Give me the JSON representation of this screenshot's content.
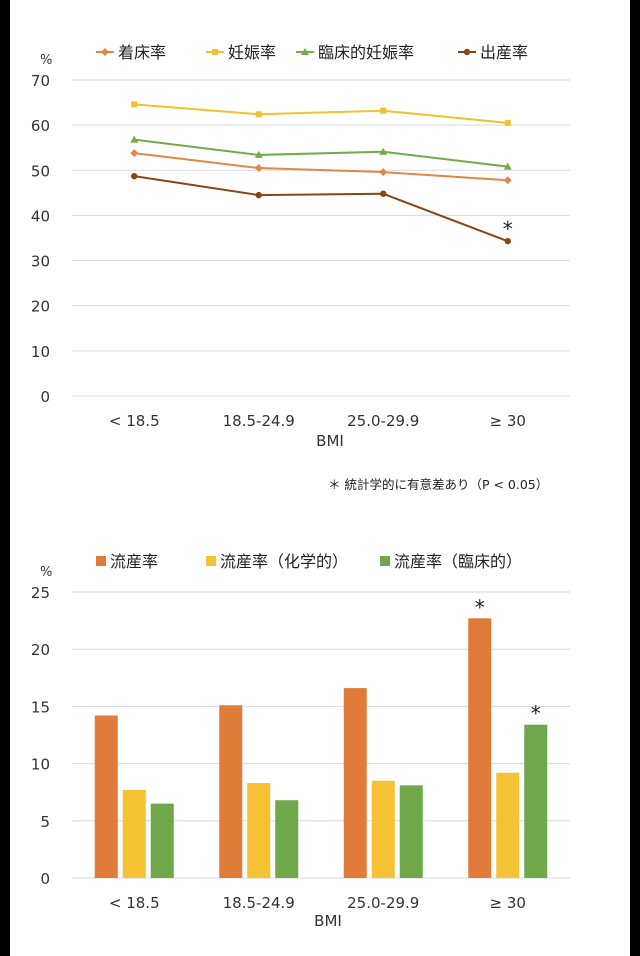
{
  "chart_data": [
    {
      "type": "line",
      "ylabel": "%",
      "xlabel": "BMI",
      "categories": [
        "< 18.5",
        "18.5-24.9",
        "25.0-29.9",
        "≥ 30"
      ],
      "ylim": [
        0,
        70
      ],
      "yticks": [
        "0",
        "10",
        "20",
        "30",
        "40",
        "50",
        "60",
        "70"
      ],
      "grid": true,
      "legend_position": "top",
      "series": [
        {
          "name": "着床率",
          "color": "#E0884A",
          "marker": "diamond",
          "values": [
            53.8,
            50.5,
            49.6,
            47.8
          ]
        },
        {
          "name": "妊娠率",
          "color": "#F2C12E",
          "marker": "square",
          "values": [
            64.6,
            62.4,
            63.2,
            60.5
          ]
        },
        {
          "name": "臨床的妊娠率",
          "color": "#70AD47",
          "marker": "triangle",
          "values": [
            56.8,
            53.4,
            54.1,
            50.8
          ]
        },
        {
          "name": "出産率",
          "color": "#8B4513",
          "marker": "circle",
          "values": [
            48.7,
            44.5,
            44.8,
            34.3
          ]
        }
      ],
      "annotations": [
        {
          "text": "*",
          "category": "≥ 30",
          "series": "出産率"
        }
      ]
    },
    {
      "type": "bar",
      "ylabel": "%",
      "xlabel": "BMI",
      "categories": [
        "< 18.5",
        "18.5-24.9",
        "25.0-29.9",
        "≥ 30"
      ],
      "ylim": [
        0,
        25
      ],
      "yticks": [
        "0",
        "5",
        "10",
        "15",
        "20",
        "25"
      ],
      "grid": true,
      "legend_position": "top",
      "series": [
        {
          "name": "流産率",
          "color": "#E07B39",
          "values": [
            14.2,
            15.1,
            16.6,
            22.7
          ]
        },
        {
          "name": "流産率（化学的）",
          "color": "#F4C233",
          "values": [
            7.7,
            8.3,
            8.5,
            9.2
          ]
        },
        {
          "name": "流産率（臨床的）",
          "color": "#6FA84A",
          "values": [
            6.5,
            6.8,
            8.1,
            13.4
          ]
        }
      ],
      "annotations": [
        {
          "text": "*",
          "category": "≥ 30",
          "series": "流産率"
        },
        {
          "text": "*",
          "category": "≥ 30",
          "series": "流産率（臨床的）"
        }
      ]
    }
  ],
  "footnote": "＊ 統計学的に有意差あり（P < 0.05）"
}
